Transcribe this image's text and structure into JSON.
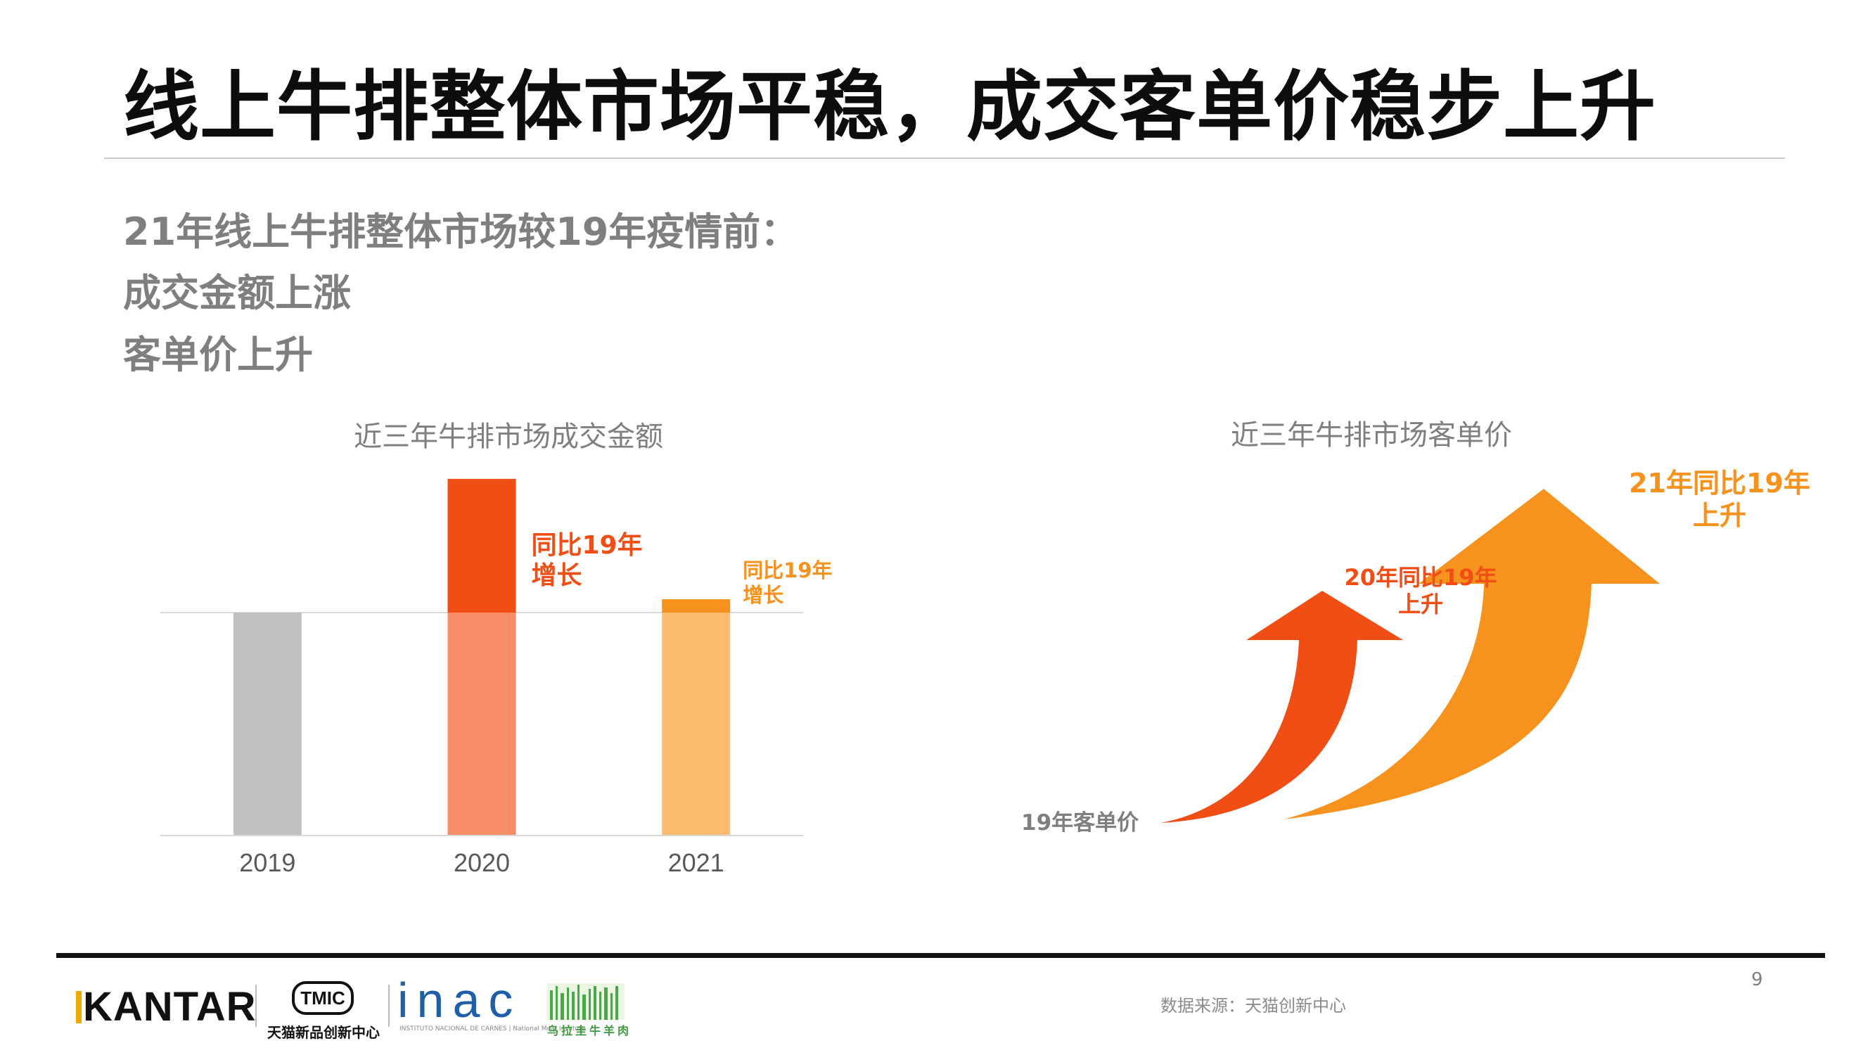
{
  "title": "线上牛排整体市场平稳，成交客单价稳步上升",
  "summary": {
    "line1": "21年线上牛排整体市场较19年疫情前：",
    "line2": "成交金额上涨",
    "line3": "客单价上升"
  },
  "chart_data": [
    {
      "type": "bar",
      "title": "近三年牛排市场成交金额",
      "categories": [
        "2019",
        "2020",
        "2021"
      ],
      "series": [
        {
          "values": [
            100,
            160,
            106
          ]
        }
      ],
      "baseline": 100,
      "ylim": [
        0,
        165
      ],
      "grid": false,
      "colors": {
        "base": [
          "#c0c0c0",
          "#f78c68",
          "#fdbb70"
        ],
        "growth": [
          "#c0c0c0",
          "#f04e14",
          "#f7921e"
        ]
      },
      "annotations": [
        {
          "category": "2020",
          "text_line1": "同比19年",
          "text_line2": "增长",
          "color": "#f04e14"
        },
        {
          "category": "2021",
          "text_line1": "同比19年",
          "text_line2": "增长",
          "color": "#f7921e"
        }
      ]
    },
    {
      "type": "other",
      "title": "近三年牛排市场客单价",
      "items": [
        {
          "label": "19年客单价",
          "color": "#7f7f7f"
        },
        {
          "label_line1": "20年同比19年",
          "label_line2": "上升",
          "color": "#f04e14"
        },
        {
          "label_line1": "21年同比19年",
          "label_line2": "上升",
          "color": "#f7921e"
        }
      ]
    }
  ],
  "footer": {
    "page_number": "9",
    "source": "数据来源：天猫创新中心",
    "logos": {
      "kantar": "KANTAR",
      "tmic_badge": "TMIC",
      "tmic_text": "天猫新品创新中心",
      "inac": "inac",
      "inac_sub": "INSTITUTO NACIONAL DE CARNES | National Meat Institute",
      "beef_text": "乌拉圭牛羊肉"
    }
  }
}
